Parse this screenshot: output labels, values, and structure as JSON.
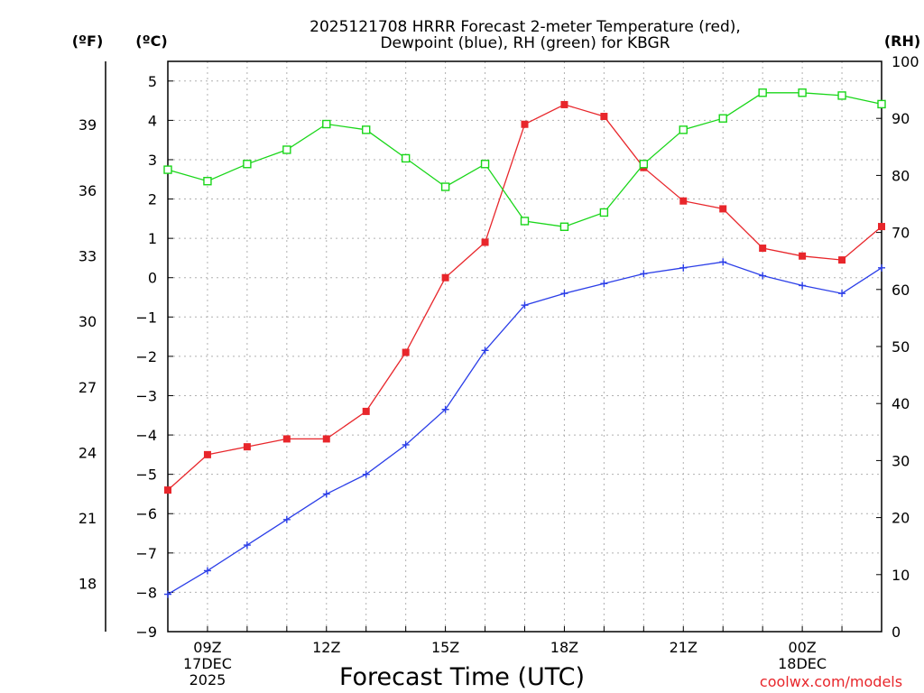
{
  "title": {
    "line1": "2025121708 HRRR Forecast 2-meter Temperature (red),",
    "line2": "Dewpoint (blue), RH (green) for KBGR"
  },
  "axis_labels": {
    "fahrenheit": "(ºF)",
    "celsius": "(ºC)",
    "rh": "(RH)",
    "x": "Forecast Time (UTC)"
  },
  "watermark": "coolwx.com/models",
  "colors": {
    "temperature": "#e8262b",
    "dewpoint": "#2b3ee8",
    "rh": "#19d619",
    "grid": "#b0b0b0"
  },
  "chart_data": {
    "type": "line",
    "title": "2025121708 HRRR Forecast 2-meter Temperature (red), Dewpoint (blue), RH (green) for KBGR",
    "xlabel": "Forecast Time (UTC)",
    "x_hours": [
      8,
      9,
      10,
      11,
      12,
      13,
      14,
      15,
      16,
      17,
      18,
      19,
      20,
      21,
      22,
      23,
      24,
      25,
      26
    ],
    "xlim": [
      8,
      26
    ],
    "x_ticks": [
      {
        "hour": 9,
        "lines": [
          "09Z",
          "17DEC",
          "2025"
        ]
      },
      {
        "hour": 12,
        "lines": [
          "12Z"
        ]
      },
      {
        "hour": 15,
        "lines": [
          "15Z"
        ]
      },
      {
        "hour": 18,
        "lines": [
          "18Z"
        ]
      },
      {
        "hour": 21,
        "lines": [
          "21Z"
        ]
      },
      {
        "hour": 24,
        "lines": [
          "00Z",
          "18DEC"
        ]
      }
    ],
    "celsius_axis": {
      "label": "(ºC)",
      "ylim": [
        -9,
        5.5
      ],
      "ticks": [
        "5",
        "4",
        "3",
        "2",
        "1",
        "0",
        "−1",
        "−2",
        "−3",
        "−4",
        "−5",
        "−6",
        "−7",
        "−8",
        "−9"
      ]
    },
    "fahrenheit_axis": {
      "label": "(ºF)",
      "ticks": [
        "39",
        "36",
        "33",
        "30",
        "27",
        "24",
        "21",
        "18"
      ]
    },
    "rh_axis": {
      "label": "(RH)",
      "ylim": [
        0,
        100
      ],
      "ticks": [
        "100",
        "90",
        "80",
        "70",
        "60",
        "50",
        "40",
        "30",
        "20",
        "10",
        "0"
      ]
    },
    "series": [
      {
        "name": "Temperature",
        "unit": "C",
        "marker": "filled-square",
        "values": [
          -5.4,
          -4.5,
          -4.3,
          -4.1,
          -4.1,
          -3.4,
          -1.9,
          0.0,
          0.9,
          3.9,
          4.4,
          4.1,
          2.8,
          1.95,
          1.75,
          0.75,
          0.55,
          0.45,
          1.3
        ]
      },
      {
        "name": "Dewpoint",
        "unit": "C",
        "marker": "plus",
        "values": [
          -8.05,
          -7.45,
          -6.8,
          -6.15,
          -5.5,
          -5.0,
          -4.25,
          -3.35,
          -1.85,
          -0.7,
          -0.4,
          -0.15,
          0.1,
          0.25,
          0.4,
          0.05,
          -0.2,
          -0.4,
          0.25
        ]
      },
      {
        "name": "RH",
        "unit": "%",
        "marker": "open-square",
        "values": [
          81,
          79,
          82,
          84.5,
          89,
          88,
          83,
          78,
          82,
          72,
          71,
          73.5,
          82,
          88,
          90,
          94.5,
          94.5,
          94,
          92.5
        ]
      }
    ]
  }
}
